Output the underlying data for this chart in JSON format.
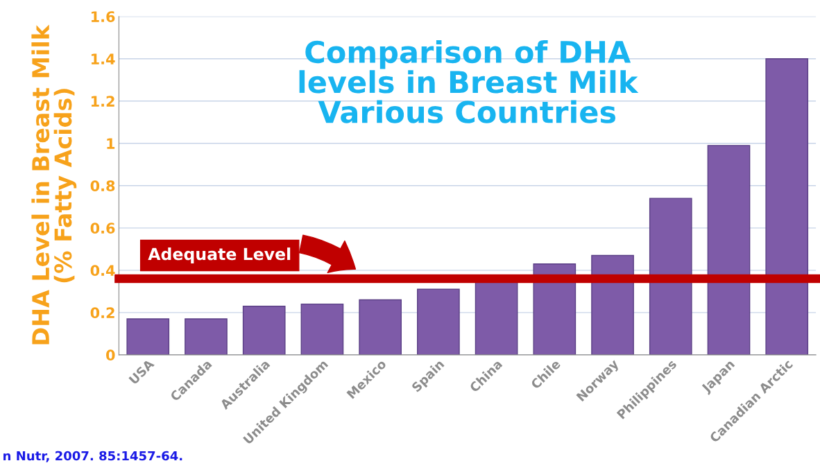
{
  "chart_data": {
    "type": "bar",
    "title": "Comparison of DHA\nlevels in Breast Milk\nVarious Countries",
    "ylabel": "DHA Level in Breast Milk\n(% Fatty Acids)",
    "categories": [
      "USA",
      "Canada",
      "Australia",
      "United Kingdom",
      "Mexico",
      "Spain",
      "China",
      "Chile",
      "Norway",
      "Philippines",
      "Japan",
      "Canadian Arctic"
    ],
    "values": [
      0.17,
      0.17,
      0.23,
      0.24,
      0.26,
      0.31,
      0.35,
      0.43,
      0.47,
      0.74,
      0.99,
      1.4
    ],
    "color": "#7e5ba8",
    "ylim": [
      0,
      1.6
    ],
    "yticks": [
      0,
      0.2,
      0.4,
      0.6,
      0.8,
      1,
      1.2,
      1.4,
      1.6
    ],
    "grid": "y",
    "ref_lines": [
      {
        "axis": "y",
        "value": 0.36,
        "label": "Adequate Level",
        "color": "#c00000"
      }
    ],
    "annotations": [
      "n Nutr, 2007. 85:1457-64."
    ]
  }
}
